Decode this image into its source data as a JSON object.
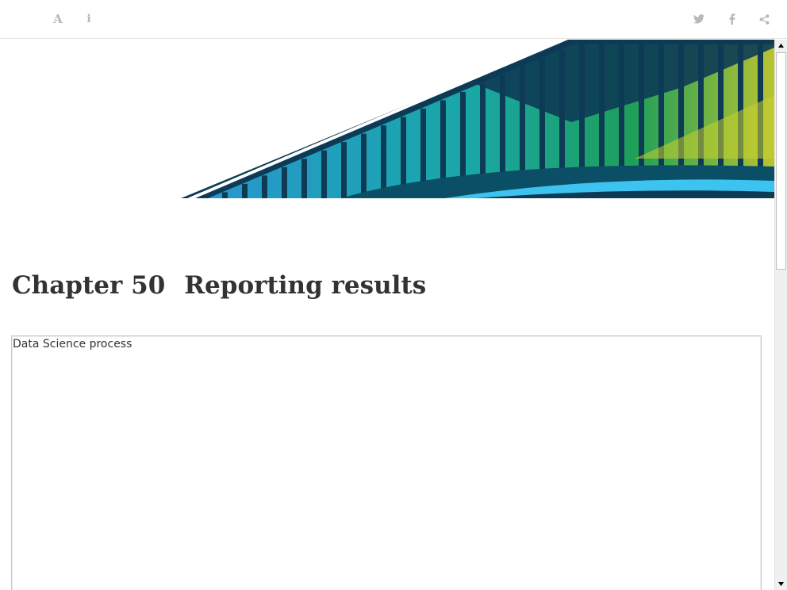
{
  "toolbar": {
    "font_button_glyph": "A",
    "info_button_glyph": "i",
    "left_icons": [
      "font-settings-icon",
      "info-icon"
    ],
    "right_icons": [
      "twitter-icon",
      "facebook-icon",
      "share-icon"
    ],
    "icon_color": "#b8b8b8"
  },
  "banner": {
    "colors": {
      "navy": "#0d3b55",
      "teal": "#1ab0b0",
      "blue": "#2a9fd8",
      "green": "#1fa85a",
      "lime": "#c8cf2e",
      "light_blue": "#3cc3ef"
    }
  },
  "chapter": {
    "number": "Chapter 50",
    "title": "Reporting results"
  },
  "embedded_frame": {
    "label": "Data Science process"
  }
}
